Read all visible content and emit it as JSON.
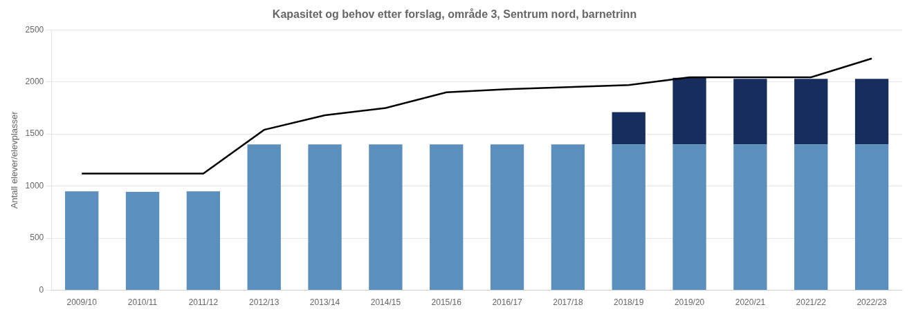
{
  "chart_data": {
    "type": "bar",
    "title": "Kapasitet og behov etter forslag, område 3, Sentrum nord, barnetrinn",
    "ylabel": "Antall elever/elevplasser",
    "categories": [
      "2009/10",
      "2010/11",
      "2011/12",
      "2012/13",
      "2013/14",
      "2014/15",
      "2015/16",
      "2016/17",
      "2017/18",
      "2018/19",
      "2019/20",
      "2020/21",
      "2021/22",
      "2022/23"
    ],
    "stacked": true,
    "series": [
      {
        "type": "bar",
        "color": "#5b8fbd",
        "values": [
          950,
          945,
          950,
          1400,
          1400,
          1400,
          1400,
          1400,
          1400,
          1400,
          1400,
          1400,
          1400,
          1400
        ]
      },
      {
        "type": "bar",
        "color": "#162d5e",
        "values": [
          0,
          0,
          0,
          0,
          0,
          0,
          0,
          0,
          0,
          310,
          640,
          630,
          630,
          630
        ]
      },
      {
        "type": "line",
        "color": "#000000",
        "values": [
          1120,
          1120,
          1120,
          1540,
          1680,
          1750,
          1900,
          1930,
          1950,
          1970,
          2045,
          2045,
          2045,
          2225
        ]
      }
    ],
    "ylim": [
      0,
      2500
    ],
    "yticks": [
      0,
      500,
      1000,
      1500,
      2000,
      2500
    ],
    "grid": true
  }
}
